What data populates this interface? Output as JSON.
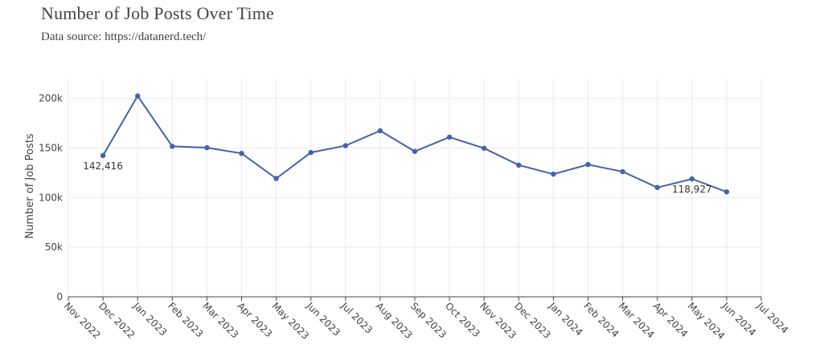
{
  "header": {
    "title": "Number of Job Posts Over Time",
    "subtitle": "Data source: https://datanerd.tech/"
  },
  "colors": {
    "series": "#4363a8",
    "grid": "#ebebeb",
    "axis": "#444444"
  },
  "chart_data": {
    "type": "line",
    "title": "Number of Job Posts Over Time",
    "subtitle": "Data source: https://datanerd.tech/",
    "xlabel": "",
    "ylabel": "Number of Job Posts",
    "x_ticks": [
      "Nov 2022",
      "Dec 2022",
      "Jan 2023",
      "Feb 2023",
      "Mar 2023",
      "Apr 2023",
      "May 2023",
      "Jun 2023",
      "Jul 2023",
      "Aug 2023",
      "Sep 2023",
      "Oct 2023",
      "Nov 2023",
      "Dec 2023",
      "Jan 2024",
      "Feb 2024",
      "Mar 2024",
      "Apr 2024",
      "May 2024",
      "Jun 2024",
      "Jul 2024"
    ],
    "x_range": [
      "Nov 2022",
      "Jul 2024"
    ],
    "y_ticks": [
      {
        "value": 0,
        "label": "0"
      },
      {
        "value": 50000,
        "label": "50k"
      },
      {
        "value": 100000,
        "label": "100k"
      },
      {
        "value": 150000,
        "label": "150k"
      },
      {
        "value": 200000,
        "label": "200k"
      }
    ],
    "ylim": [
      0,
      220000
    ],
    "grid": true,
    "legend": "none",
    "series": [
      {
        "x": [
          "Dec 2022",
          "Jan 2023",
          "Feb 2023",
          "Mar 2023",
          "Apr 2023",
          "May 2023",
          "Jun 2023",
          "Jul 2023",
          "Aug 2023",
          "Sep 2023",
          "Oct 2023",
          "Nov 2023",
          "Dec 2023",
          "Jan 2024",
          "Feb 2024",
          "Mar 2024",
          "Apr 2024",
          "May 2024",
          "Jun 2024"
        ],
        "values": [
          142416,
          202500,
          151700,
          150400,
          144600,
          119300,
          145500,
          152400,
          167400,
          146600,
          161000,
          149800,
          132800,
          123700,
          133400,
          126200,
          110200,
          118927,
          105800
        ]
      }
    ],
    "annotations": [
      {
        "x": "Dec 2022",
        "value": 142416,
        "text": "142,416"
      },
      {
        "x": "May 2024",
        "value": 118927,
        "text": "118,927"
      }
    ]
  }
}
